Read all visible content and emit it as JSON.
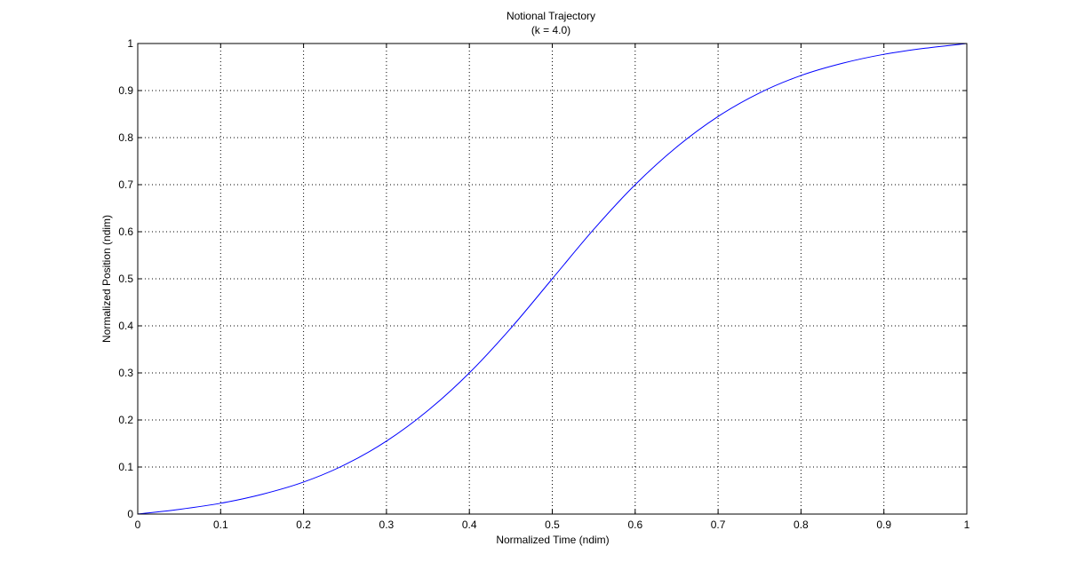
{
  "chart_data": {
    "type": "line",
    "title": "Notional Trajectory",
    "subtitle": "(k = 4.0)",
    "xlabel": "Normalized Time (ndim)",
    "ylabel": "Normalized Position (ndim)",
    "xlim": [
      0,
      1
    ],
    "ylim": [
      0,
      1
    ],
    "xticks": [
      "0",
      "0.1",
      "0.2",
      "0.3",
      "0.4",
      "0.5",
      "0.6",
      "0.7",
      "0.8",
      "0.9",
      "1"
    ],
    "yticks": [
      "0",
      "0.1",
      "0.2",
      "0.3",
      "0.4",
      "0.5",
      "0.6",
      "0.7",
      "0.8",
      "0.9",
      "1"
    ],
    "grid": true,
    "series": [
      {
        "color": "#0000ff",
        "x": [
          0,
          0.05,
          0.1,
          0.15,
          0.2,
          0.25,
          0.3,
          0.35,
          0.4,
          0.45,
          0.5,
          0.55,
          0.6,
          0.65,
          0.7,
          0.75,
          0.8,
          0.85,
          0.9,
          0.95,
          1
        ],
        "y": [
          0,
          0.01,
          0.023,
          0.042,
          0.068,
          0.105,
          0.155,
          0.22,
          0.3,
          0.395,
          0.5,
          0.605,
          0.7,
          0.78,
          0.845,
          0.895,
          0.932,
          0.958,
          0.977,
          0.99,
          1
        ]
      }
    ]
  }
}
